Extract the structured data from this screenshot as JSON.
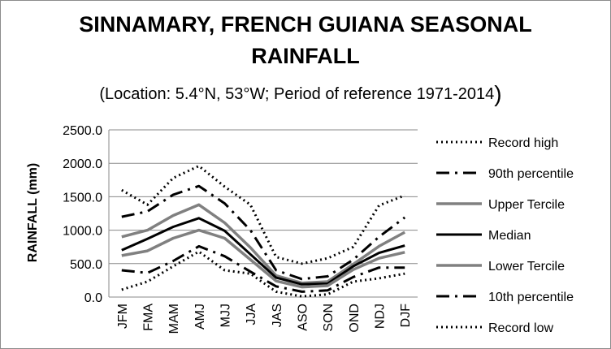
{
  "chart_data": {
    "type": "line",
    "title_line1": "SINNAMARY, FRENCH GUIANA SEASONAL",
    "title_line2": "RAINFALL",
    "subtitle": "(Location: 5.4°N, 53°W; Period of reference 1971-2014",
    "subtitle_paren": ")",
    "xlabel": "",
    "ylabel": "RAINFALL (mm)",
    "ylim": [
      0,
      2500
    ],
    "yticks": [
      "0.0",
      "500.0",
      "1000.0",
      "1500.0",
      "2000.0",
      "2500.0"
    ],
    "grid": true,
    "legend_position": "right",
    "categories": [
      "JFM",
      "FMA",
      "MAM",
      "AMJ",
      "MJJ",
      "JJA",
      "JAS",
      "ASO",
      "SON",
      "OND",
      "NDJ",
      "DJF"
    ],
    "series": [
      {
        "name": "Record high",
        "color": "#000000",
        "style": "dotted",
        "values": [
          1600,
          1380,
          1780,
          1960,
          1650,
          1380,
          600,
          500,
          580,
          750,
          1370,
          1520
        ]
      },
      {
        "name": "90th percentile",
        "color": "#000000",
        "style": "dashdot",
        "values": [
          1200,
          1280,
          1530,
          1660,
          1400,
          1000,
          400,
          270,
          310,
          560,
          900,
          1190
        ]
      },
      {
        "name": "Upper Tercile",
        "color": "#808080",
        "style": "solid",
        "values": [
          900,
          1000,
          1220,
          1380,
          1110,
          740,
          320,
          210,
          230,
          490,
          760,
          970
        ]
      },
      {
        "name": "Median",
        "color": "#000000",
        "style": "solid",
        "values": [
          700,
          870,
          1050,
          1180,
          990,
          640,
          290,
          190,
          200,
          460,
          660,
          770
        ]
      },
      {
        "name": "Lower Tercile",
        "color": "#808080",
        "style": "solid",
        "values": [
          620,
          690,
          880,
          1000,
          880,
          560,
          240,
          150,
          170,
          410,
          580,
          670
        ]
      },
      {
        "name": "10th percentile",
        "color": "#000000",
        "style": "dashdot",
        "values": [
          400,
          360,
          540,
          760,
          610,
          380,
          160,
          80,
          100,
          300,
          440,
          440
        ]
      },
      {
        "name": "Record low",
        "color": "#000000",
        "style": "dotted",
        "values": [
          110,
          230,
          460,
          680,
          400,
          350,
          80,
          10,
          40,
          230,
          280,
          350
        ]
      }
    ]
  }
}
